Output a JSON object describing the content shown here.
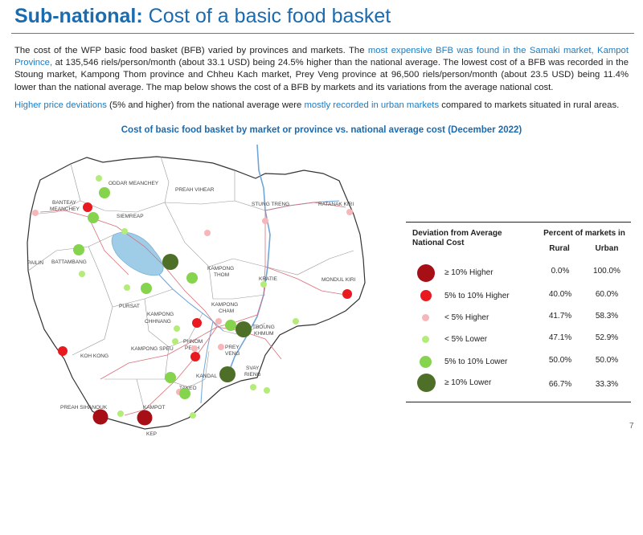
{
  "header": {
    "title_bold": "Sub-national:",
    "title_rest": " Cost of a basic food basket"
  },
  "paragraph1": {
    "t1": "The cost of the WFP basic food basket (BFB) varied by provinces and markets. The ",
    "t2": "most expensive BFB was found in the Samaki market, Kampot Province,",
    "t3": " at 135,546 riels/person/month (about 33.1 USD) being 24.5% higher than the national average. The lowest cost of a BFB was recorded in the Stoung market, Kampong Thom province and Chheu Kach market, Prey Veng province at 96,500 riels/person/month (about 23.5 USD) being 11.4% lower than the national average. The map below shows the cost of a BFB by markets and its variations from the average national cost."
  },
  "paragraph2": {
    "t1": "Higher price deviations",
    "t2": " (5% and higher) from the national average were ",
    "t3": "mostly recorded in urban markets",
    "t4": " compared to markets situated in rural areas."
  },
  "chart_title": "Cost of basic food basket by market or province vs. national average cost (December 2022)",
  "map": {
    "labels": [
      "ODDAR MEANCHEY",
      "PREAH VIHEAR",
      "BANTEAY",
      "MEANCHEY",
      "SIEMREAP",
      "STUNG TRENG",
      "RATANAK KIRI",
      "PAILIN",
      "BATTAMBANG",
      "KAMPONG",
      "THOM",
      "KRATIE",
      "MONDUL KIRI",
      "PURSAT",
      "KAMPONG",
      "CHHNANG",
      "KAMPONG",
      "CHAM",
      "TBOUNG",
      "KHMUM",
      "KOH KONG",
      "KAMPONG SPEU",
      "PHNOM",
      "PENH",
      "PREY",
      "VENG",
      "KANDAL",
      "SVAY",
      "RIENG",
      "TAKEO",
      "PREAH SIHANOUK",
      "KAMPOT",
      "KEP"
    ]
  },
  "legend": {
    "header_deviation": "Deviation from Average National Cost",
    "header_percent": "Percent of markets in",
    "header_rural": "Rural",
    "header_urban": "Urban",
    "rows": [
      {
        "label": "≥ 10% Higher",
        "rural": "0.0%",
        "urban": "100.0%",
        "color": "#a50f15"
      },
      {
        "label": "5% to 10% Higher",
        "rural": "40.0%",
        "urban": "60.0%",
        "color": "#e8191f"
      },
      {
        "label": "< 5% Higher",
        "rural": "41.7%",
        "urban": "58.3%",
        "color": "#f7b6ba"
      },
      {
        "label": "< 5% Lower",
        "rural": "47.1%",
        "urban": "52.9%",
        "color": "#b4ec7a"
      },
      {
        "label": "5% to 10% Lower",
        "rural": "50.0%",
        "urban": "50.0%",
        "color": "#86d34e"
      },
      {
        "label": "≥ 10% Lower",
        "rural": "66.7%",
        "urban": "33.3%",
        "color": "#4d6f28"
      }
    ]
  },
  "page_number": "7"
}
